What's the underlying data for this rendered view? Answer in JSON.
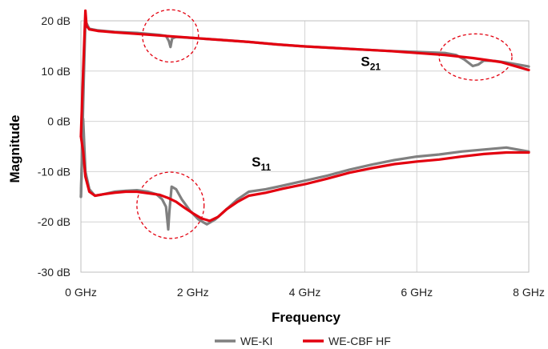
{
  "chart_data": {
    "type": "line",
    "xlabel": "Frequency",
    "ylabel": "Magnitude",
    "xlim": [
      0,
      8
    ],
    "ylim": [
      -30,
      20
    ],
    "x_ticks": [
      {
        "value": 0,
        "label": "0 GHz"
      },
      {
        "value": 2,
        "label": "2 GHz"
      },
      {
        "value": 4,
        "label": "4 GHz"
      },
      {
        "value": 6,
        "label": "6 GHz"
      },
      {
        "value": 8,
        "label": "8 GHz"
      }
    ],
    "y_ticks": [
      {
        "value": 20,
        "label": "20 dB"
      },
      {
        "value": 10,
        "label": "10 dB"
      },
      {
        "value": 0,
        "label": "0 dB"
      },
      {
        "value": -10,
        "label": "-10 dB"
      },
      {
        "value": -20,
        "label": "-20 dB"
      },
      {
        "value": -30,
        "label": "-30 dB"
      }
    ],
    "grid": {
      "x": true,
      "y": true
    },
    "legend": {
      "position": "bottom"
    },
    "annotations": [
      {
        "id": "s21",
        "main": "S",
        "sub": "21",
        "x": 5.0,
        "y": 11.0
      },
      {
        "id": "s11",
        "main": "S",
        "sub": "11",
        "x": 3.05,
        "y": -9.0
      }
    ],
    "highlight_regions": [
      {
        "cx": 1.6,
        "cy": 17.0,
        "rx": 0.5,
        "ry": 5.2
      },
      {
        "cx": 7.05,
        "cy": 12.8,
        "rx": 0.65,
        "ry": 4.6
      },
      {
        "cx": 1.6,
        "cy": -16.7,
        "rx": 0.6,
        "ry": 6.6
      }
    ],
    "series": [
      {
        "name": "WE-KI",
        "color": "#808080",
        "curves": [
          {
            "label": "S21",
            "x": [
              0,
              0.05,
              0.08,
              0.1,
              0.15,
              0.3,
              0.6,
              1.0,
              1.4,
              1.52,
              1.57,
              1.6,
              1.63,
              1.7,
              2.0,
              2.5,
              3.0,
              3.5,
              4.0,
              4.5,
              5.0,
              5.5,
              6.0,
              6.5,
              6.7,
              6.85,
              7.0,
              7.1,
              7.2,
              7.4,
              7.6,
              8.0
            ],
            "y": [
              -15,
              8,
              20,
              19.5,
              18.4,
              18.1,
              17.8,
              17.6,
              17.2,
              17.0,
              16.0,
              14.8,
              16.5,
              16.8,
              16.6,
              16.2,
              15.8,
              15.3,
              14.9,
              14.6,
              14.3,
              14.0,
              13.8,
              13.6,
              13.2,
              12.3,
              11.0,
              11.3,
              12.1,
              12.0,
              11.7,
              10.9
            ]
          },
          {
            "label": "S11",
            "x": [
              0,
              0.04,
              0.08,
              0.15,
              0.25,
              0.4,
              0.6,
              0.8,
              1.0,
              1.2,
              1.35,
              1.45,
              1.52,
              1.56,
              1.58,
              1.62,
              1.7,
              1.8,
              1.95,
              2.1,
              2.25,
              2.4,
              2.6,
              2.8,
              3.0,
              3.3,
              3.6,
              4.0,
              4.4,
              4.8,
              5.2,
              5.6,
              6.0,
              6.4,
              6.8,
              7.2,
              7.6,
              8.0
            ],
            "y": [
              -15,
              0.5,
              -10,
              -13.5,
              -14.8,
              -14.5,
              -14.0,
              -13.8,
              -13.7,
              -14.0,
              -14.5,
              -15.5,
              -17,
              -21.5,
              -18,
              -13,
              -13.5,
              -15.5,
              -17.8,
              -19.5,
              -20.5,
              -19.5,
              -17.5,
              -15.5,
              -14.0,
              -13.5,
              -12.8,
              -11.8,
              -10.8,
              -9.6,
              -8.6,
              -7.7,
              -7.0,
              -6.6,
              -6.0,
              -5.6,
              -5.2,
              -6.0
            ]
          }
        ]
      },
      {
        "name": "WE-CBF HF",
        "color": "#e3000f",
        "curves": [
          {
            "label": "S21",
            "x": [
              0,
              0.04,
              0.08,
              0.1,
              0.15,
              0.3,
              0.6,
              1.0,
              1.5,
              2.0,
              2.5,
              3.0,
              3.5,
              4.0,
              4.5,
              5.0,
              5.5,
              6.0,
              6.5,
              7.0,
              7.5,
              8.0
            ],
            "y": [
              -3,
              10,
              22,
              19,
              18.3,
              18.0,
              17.7,
              17.4,
              17.0,
              16.6,
              16.2,
              15.8,
              15.3,
              14.9,
              14.6,
              14.3,
              14.0,
              13.6,
              13.2,
              12.6,
              11.8,
              10.2
            ]
          },
          {
            "label": "S11",
            "x": [
              0,
              0.04,
              0.08,
              0.15,
              0.25,
              0.4,
              0.6,
              0.8,
              1.0,
              1.2,
              1.4,
              1.55,
              1.7,
              1.85,
              2.0,
              2.15,
              2.3,
              2.45,
              2.6,
              2.8,
              3.0,
              3.3,
              3.6,
              4.0,
              4.4,
              4.8,
              5.2,
              5.6,
              6.0,
              6.4,
              6.8,
              7.2,
              7.6,
              8.0
            ],
            "y": [
              -3,
              -6,
              -11,
              -14,
              -14.8,
              -14.5,
              -14.2,
              -14.0,
              -14.0,
              -14.3,
              -14.6,
              -15.2,
              -16.0,
              -17.2,
              -18.3,
              -19.3,
              -19.8,
              -19.0,
              -17.5,
              -16.0,
              -14.8,
              -14.2,
              -13.4,
              -12.5,
              -11.4,
              -10.2,
              -9.3,
              -8.5,
              -8.0,
              -7.6,
              -7.0,
              -6.5,
              -6.2,
              -6.2
            ]
          }
        ]
      }
    ]
  }
}
